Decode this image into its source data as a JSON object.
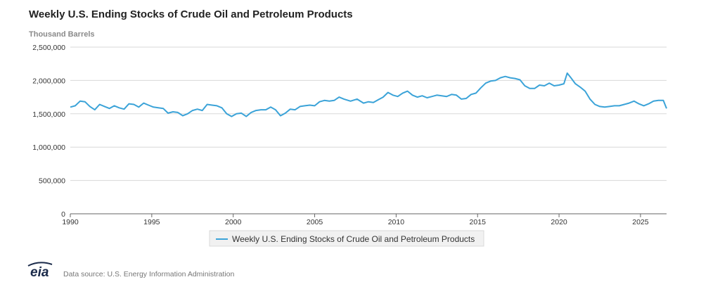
{
  "chart_data": {
    "type": "line",
    "title": "Weekly U.S. Ending Stocks of Crude Oil and Petroleum Products",
    "ylabel": "Thousand Barrels",
    "xlabel": "",
    "xlim": [
      1990,
      2026.6
    ],
    "ylim": [
      0,
      2500000
    ],
    "y_ticks": [
      0,
      500000,
      1000000,
      1500000,
      2000000,
      2500000
    ],
    "y_tick_labels": [
      "0",
      "500,000",
      "1,000,000",
      "1,500,000",
      "2,000,000",
      "2,500,000"
    ],
    "x_ticks": [
      1990,
      1995,
      2000,
      2005,
      2010,
      2015,
      2020,
      2025
    ],
    "x_tick_labels": [
      "1990",
      "1995",
      "2000",
      "2005",
      "2010",
      "2015",
      "2020",
      "2025"
    ],
    "grid": true,
    "legend_position": "bottom",
    "series": [
      {
        "name": "Weekly U.S. Ending Stocks of Crude Oil and Petroleum Products",
        "color": "#3ba3d8",
        "x": [
          1990.0,
          1990.3,
          1990.6,
          1990.9,
          1991.2,
          1991.5,
          1991.8,
          1992.1,
          1992.4,
          1992.7,
          1993.0,
          1993.3,
          1993.6,
          1993.9,
          1994.2,
          1994.5,
          1994.8,
          1995.1,
          1995.4,
          1995.7,
          1996.0,
          1996.3,
          1996.6,
          1996.9,
          1997.2,
          1997.5,
          1997.8,
          1998.1,
          1998.4,
          1998.7,
          1999.0,
          1999.3,
          1999.6,
          1999.9,
          2000.2,
          2000.5,
          2000.8,
          2001.1,
          2001.4,
          2001.7,
          2002.0,
          2002.3,
          2002.6,
          2002.9,
          2003.2,
          2003.5,
          2003.8,
          2004.1,
          2004.4,
          2004.7,
          2005.0,
          2005.3,
          2005.6,
          2005.9,
          2006.2,
          2006.5,
          2006.8,
          2007.2,
          2007.6,
          2008.0,
          2008.3,
          2008.6,
          2008.9,
          2009.2,
          2009.5,
          2009.8,
          2010.1,
          2010.4,
          2010.7,
          2011.0,
          2011.3,
          2011.6,
          2011.9,
          2012.2,
          2012.5,
          2012.8,
          2013.1,
          2013.4,
          2013.7,
          2014.0,
          2014.3,
          2014.6,
          2014.9,
          2015.2,
          2015.5,
          2015.8,
          2016.1,
          2016.4,
          2016.7,
          2017.0,
          2017.3,
          2017.6,
          2017.9,
          2018.2,
          2018.5,
          2018.8,
          2019.1,
          2019.4,
          2019.7,
          2020.0,
          2020.3,
          2020.5,
          2020.7,
          2021.0,
          2021.3,
          2021.6,
          2021.9,
          2022.2,
          2022.5,
          2022.8,
          2023.1,
          2023.4,
          2023.7,
          2024.0,
          2024.3,
          2024.6,
          2024.9,
          2025.2,
          2025.5,
          2025.8,
          2026.1,
          2026.4,
          2026.6
        ],
        "values": [
          1600000,
          1620000,
          1690000,
          1680000,
          1610000,
          1560000,
          1640000,
          1610000,
          1580000,
          1620000,
          1590000,
          1570000,
          1650000,
          1640000,
          1600000,
          1660000,
          1630000,
          1600000,
          1590000,
          1580000,
          1510000,
          1530000,
          1520000,
          1470000,
          1500000,
          1550000,
          1570000,
          1550000,
          1640000,
          1630000,
          1620000,
          1590000,
          1500000,
          1460000,
          1500000,
          1510000,
          1460000,
          1520000,
          1550000,
          1560000,
          1560000,
          1600000,
          1560000,
          1470000,
          1510000,
          1570000,
          1560000,
          1610000,
          1620000,
          1630000,
          1620000,
          1680000,
          1700000,
          1690000,
          1700000,
          1750000,
          1720000,
          1690000,
          1720000,
          1660000,
          1680000,
          1670000,
          1710000,
          1750000,
          1820000,
          1780000,
          1760000,
          1810000,
          1840000,
          1780000,
          1750000,
          1770000,
          1740000,
          1760000,
          1780000,
          1770000,
          1760000,
          1790000,
          1780000,
          1720000,
          1730000,
          1790000,
          1810000,
          1890000,
          1960000,
          1990000,
          2000000,
          2040000,
          2060000,
          2040000,
          2030000,
          2010000,
          1920000,
          1880000,
          1880000,
          1930000,
          1920000,
          1960000,
          1920000,
          1930000,
          1950000,
          2110000,
          2050000,
          1950000,
          1900000,
          1840000,
          1720000,
          1640000,
          1610000,
          1600000,
          1610000,
          1620000,
          1620000,
          1640000,
          1660000,
          1690000,
          1650000,
          1620000,
          1650000,
          1690000,
          1700000,
          1700000,
          1580000
        ]
      }
    ],
    "legend": [
      "Weekly U.S. Ending Stocks of Crude Oil and Petroleum Products"
    ]
  },
  "footer": {
    "logo_text": "eia",
    "source_text": "Data source: U.S. Energy Information Administration"
  },
  "colors": {
    "line": "#3ba3d8",
    "grid": "#d8d8d8",
    "axis": "#666666"
  }
}
